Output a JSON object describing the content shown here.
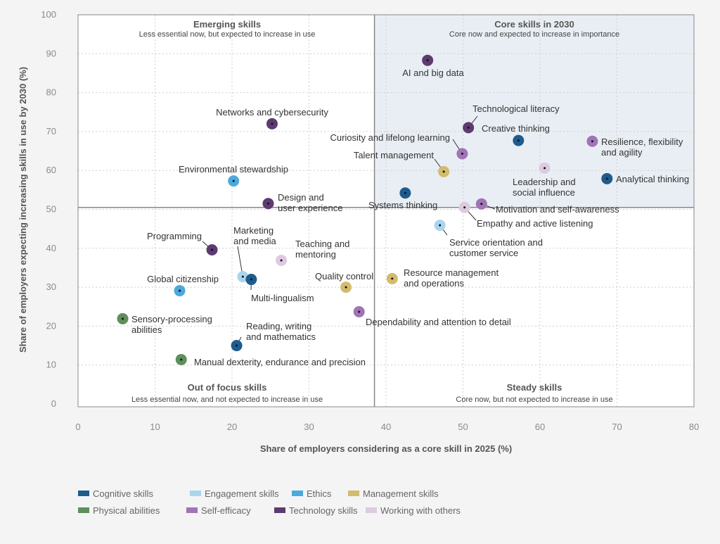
{
  "chart_data": {
    "type": "scatter",
    "xlabel": "Share of employers considering as a core skill in 2025 (%)",
    "ylabel": "Share of employers expecting increasing skills in use by 2030 (%)",
    "xlim": [
      0,
      80
    ],
    "ylim": [
      0,
      100
    ],
    "xticks": [
      "0",
      "10",
      "20",
      "30",
      "40",
      "50",
      "60",
      "70",
      "80"
    ],
    "yticks": [
      "0",
      "10",
      "20",
      "30",
      "40",
      "50",
      "60",
      "70",
      "80",
      "90",
      "100"
    ],
    "grid": true,
    "divider": {
      "x": 38.5,
      "y": 50.5
    },
    "quadrants": [
      {
        "title": "Emerging skills",
        "subtitle": "Less essential now, but expected to increase in use"
      },
      {
        "title": "Core skills in 2030",
        "subtitle": "Core now and expected to increase in importance"
      },
      {
        "title": "Out of focus skills",
        "subtitle": "Less essential now, and not expected to increase in use"
      },
      {
        "title": "Steady skills",
        "subtitle": "Core now, but not expected to increase in use"
      }
    ],
    "categories": [
      {
        "name": "Cognitive skills",
        "color": "#1d5c8f"
      },
      {
        "name": "Engagement skills",
        "color": "#a9d6ee"
      },
      {
        "name": "Ethics",
        "color": "#4ba9dd"
      },
      {
        "name": "Management skills",
        "color": "#d2bb6c"
      },
      {
        "name": "Physical abilities",
        "color": "#5e8f5c"
      },
      {
        "name": "Self-efficacy",
        "color": "#a074b6"
      },
      {
        "name": "Technology skills",
        "color": "#5d3b70"
      },
      {
        "name": "Working with others",
        "color": "#dccbdf"
      }
    ],
    "points": [
      {
        "label": [
          "AI and big data"
        ],
        "cat": 6,
        "x": 45.4,
        "y": 88.3
      },
      {
        "label": [
          "Networks and cybersecurity"
        ],
        "cat": 6,
        "x": 25.2,
        "y": 72.0
      },
      {
        "label": [
          "Technological literacy"
        ],
        "cat": 6,
        "x": 50.7,
        "y": 71.0
      },
      {
        "label": [
          "Creative thinking"
        ],
        "cat": 0,
        "x": 57.2,
        "y": 67.7
      },
      {
        "label": [
          "Resilience, flexibility",
          "and agility"
        ],
        "cat": 5,
        "x": 66.8,
        "y": 67.5
      },
      {
        "label": [
          "Curiosity and lifelong learning"
        ],
        "cat": 5,
        "x": 49.9,
        "y": 64.3
      },
      {
        "label": [
          "Talent management"
        ],
        "cat": 3,
        "x": 47.5,
        "y": 59.7
      },
      {
        "label": [
          "Leadership and",
          "social influence"
        ],
        "cat": 7,
        "x": 60.6,
        "y": 60.6
      },
      {
        "label": [
          "Analytical thinking"
        ],
        "cat": 0,
        "x": 68.7,
        "y": 57.9
      },
      {
        "label": [
          "Environmental stewardship"
        ],
        "cat": 2,
        "x": 20.2,
        "y": 57.3
      },
      {
        "label": [
          "Systems thinking"
        ],
        "cat": 0,
        "x": 42.5,
        "y": 54.2
      },
      {
        "label": [
          "Design and",
          "user experience"
        ],
        "cat": 6,
        "x": 24.7,
        "y": 51.5
      },
      {
        "label": [
          "Motivation and self-awareness"
        ],
        "cat": 5,
        "x": 52.4,
        "y": 51.4
      },
      {
        "label": [
          "Empathy and active listening"
        ],
        "cat": 7,
        "x": 50.2,
        "y": 50.5
      },
      {
        "label": [
          "Service orientation and",
          "customer service"
        ],
        "cat": 1,
        "x": 47.0,
        "y": 45.9
      },
      {
        "label": [
          "Programming"
        ],
        "cat": 6,
        "x": 17.4,
        "y": 39.6
      },
      {
        "label": [
          "Teaching and",
          "mentoring"
        ],
        "cat": 7,
        "x": 26.4,
        "y": 36.9
      },
      {
        "label": [
          "Marketing",
          "and media"
        ],
        "cat": 1,
        "x": 21.4,
        "y": 32.7
      },
      {
        "label": [
          "Multi-lingualism"
        ],
        "cat": 0,
        "x": 22.5,
        "y": 32.0
      },
      {
        "label": [
          "Global citizenship"
        ],
        "cat": 2,
        "x": 13.2,
        "y": 29.1
      },
      {
        "label": [
          "Quality control"
        ],
        "cat": 3,
        "x": 34.8,
        "y": 30.0
      },
      {
        "label": [
          "Resource management",
          "and operations"
        ],
        "cat": 3,
        "x": 40.8,
        "y": 32.2
      },
      {
        "label": [
          "Dependability and attention to detail"
        ],
        "cat": 5,
        "x": 36.5,
        "y": 23.7
      },
      {
        "label": [
          "Sensory-processing",
          "abilities"
        ],
        "cat": 4,
        "x": 5.8,
        "y": 21.9
      },
      {
        "label": [
          "Reading, writing",
          "and mathematics"
        ],
        "cat": 0,
        "x": 20.6,
        "y": 15.0
      },
      {
        "label": [
          "Manual dexterity, endurance and precision"
        ],
        "cat": 4,
        "x": 13.4,
        "y": 11.4
      }
    ]
  }
}
